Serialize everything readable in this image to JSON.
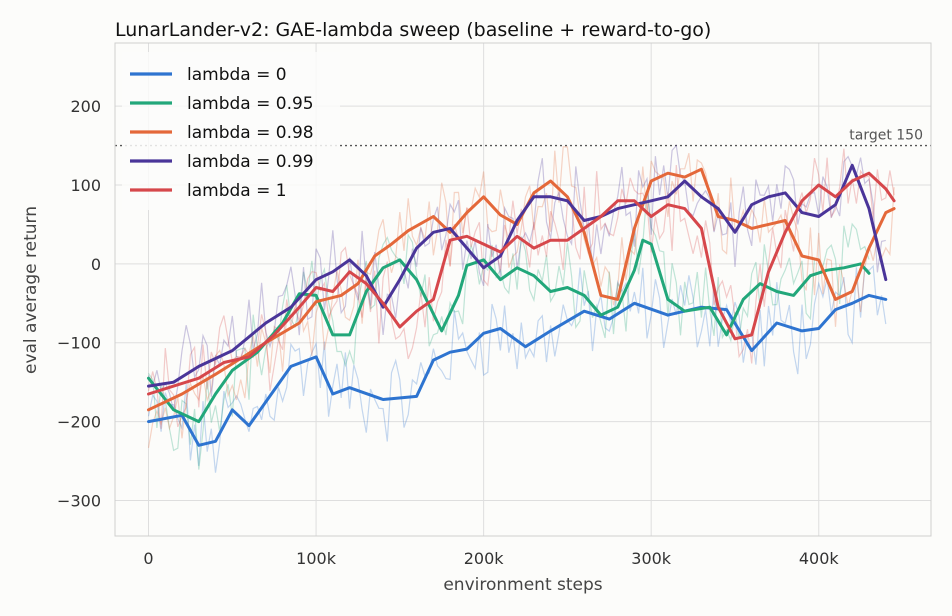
{
  "chart_data": {
    "type": "line",
    "title": "LunarLander-v2: GAE-lambda sweep (baseline + reward-to-go)",
    "xlabel": "environment steps",
    "ylabel": "eval average return",
    "xlim": [
      -20000,
      467000
    ],
    "ylim": [
      -345,
      280
    ],
    "x_ticks": [
      0,
      100000,
      200000,
      300000,
      400000
    ],
    "x_tick_labels": [
      "0",
      "100k",
      "200k",
      "300k",
      "400k"
    ],
    "y_ticks": [
      -300,
      -200,
      -100,
      0,
      100,
      200
    ],
    "y_tick_labels": [
      "−300",
      "−200",
      "−100",
      "0",
      "100",
      "200"
    ],
    "grid": true,
    "legend_position": "top-left",
    "reference_line": {
      "y": 150,
      "label": "target 150",
      "color": "#555555"
    },
    "series": [
      {
        "name": "lambda = 0",
        "color": "#2e74d0",
        "x": [
          0,
          20000,
          30000,
          40000,
          50000,
          60000,
          70000,
          85000,
          100000,
          110000,
          120000,
          140000,
          160000,
          170000,
          180000,
          190000,
          200000,
          210000,
          225000,
          240000,
          260000,
          275000,
          290000,
          310000,
          330000,
          345000,
          360000,
          375000,
          390000,
          400000,
          410000,
          420000,
          430000,
          440000
        ],
        "values": [
          -200,
          -192,
          -230,
          -225,
          -185,
          -205,
          -175,
          -130,
          -118,
          -165,
          -157,
          -172,
          -168,
          -122,
          -112,
          -108,
          -88,
          -82,
          -105,
          -85,
          -60,
          -70,
          -50,
          -65,
          -55,
          -58,
          -110,
          -75,
          -85,
          -82,
          -58,
          -50,
          -40,
          -45
        ]
      },
      {
        "name": "lambda = 0.95",
        "color": "#22a77a",
        "x": [
          0,
          15000,
          30000,
          40000,
          50000,
          65000,
          80000,
          90000,
          100000,
          110000,
          120000,
          130000,
          140000,
          150000,
          160000,
          175000,
          185000,
          190000,
          200000,
          210000,
          220000,
          230000,
          240000,
          250000,
          260000,
          270000,
          280000,
          290000,
          295000,
          300000,
          310000,
          320000,
          335000,
          345000,
          355000,
          365000,
          375000,
          385000,
          395000,
          405000,
          415000,
          425000,
          430000
        ],
        "values": [
          -145,
          -185,
          -200,
          -165,
          -135,
          -112,
          -75,
          -38,
          -40,
          -90,
          -90,
          -35,
          -5,
          5,
          -20,
          -85,
          -40,
          -2,
          5,
          -20,
          -5,
          -15,
          -35,
          -30,
          -40,
          -65,
          -55,
          -8,
          30,
          25,
          -45,
          -60,
          -55,
          -90,
          -45,
          -25,
          -35,
          -40,
          -15,
          -8,
          -5,
          0,
          -12
        ]
      },
      {
        "name": "lambda = 0.98",
        "color": "#e4683a",
        "x": [
          0,
          20000,
          40000,
          55000,
          70000,
          90000,
          100000,
          115000,
          125000,
          135000,
          145000,
          155000,
          170000,
          180000,
          190000,
          200000,
          210000,
          220000,
          230000,
          240000,
          250000,
          260000,
          270000,
          280000,
          290000,
          300000,
          310000,
          320000,
          330000,
          340000,
          350000,
          360000,
          370000,
          380000,
          390000,
          400000,
          410000,
          420000,
          430000,
          440000,
          445000
        ],
        "values": [
          -185,
          -165,
          -140,
          -120,
          -100,
          -75,
          -48,
          -40,
          -25,
          10,
          25,
          42,
          60,
          40,
          65,
          85,
          62,
          50,
          90,
          105,
          85,
          40,
          -40,
          -45,
          45,
          105,
          115,
          110,
          120,
          60,
          55,
          45,
          50,
          55,
          10,
          5,
          -45,
          -35,
          20,
          65,
          70
        ]
      },
      {
        "name": "lambda = 0.99",
        "color": "#4a3599",
        "x": [
          0,
          15000,
          30000,
          50000,
          70000,
          85000,
          100000,
          110000,
          120000,
          130000,
          140000,
          150000,
          160000,
          170000,
          180000,
          190000,
          200000,
          210000,
          220000,
          230000,
          240000,
          250000,
          260000,
          270000,
          280000,
          290000,
          300000,
          310000,
          320000,
          330000,
          340000,
          350000,
          360000,
          370000,
          380000,
          390000,
          400000,
          410000,
          420000,
          430000,
          440000
        ],
        "values": [
          -155,
          -150,
          -130,
          -110,
          -75,
          -55,
          -20,
          -10,
          5,
          -15,
          -55,
          -20,
          20,
          40,
          45,
          20,
          -5,
          10,
          55,
          85,
          85,
          80,
          55,
          60,
          70,
          75,
          80,
          85,
          105,
          85,
          70,
          40,
          75,
          85,
          90,
          65,
          60,
          75,
          125,
          70,
          -20
        ]
      },
      {
        "name": "lambda = 1",
        "color": "#d6474b",
        "x": [
          0,
          15000,
          30000,
          45000,
          60000,
          75000,
          90000,
          100000,
          110000,
          120000,
          130000,
          140000,
          150000,
          160000,
          170000,
          180000,
          190000,
          200000,
          210000,
          220000,
          230000,
          240000,
          250000,
          260000,
          270000,
          280000,
          290000,
          300000,
          310000,
          320000,
          330000,
          340000,
          350000,
          360000,
          370000,
          380000,
          390000,
          400000,
          410000,
          420000,
          430000,
          440000,
          445000
        ],
        "values": [
          -165,
          -155,
          -145,
          -125,
          -118,
          -90,
          -55,
          -30,
          -35,
          -10,
          -25,
          -50,
          -80,
          -60,
          -45,
          30,
          35,
          25,
          15,
          35,
          20,
          30,
          30,
          45,
          60,
          80,
          80,
          60,
          75,
          70,
          45,
          -55,
          -95,
          -90,
          -10,
          40,
          80,
          100,
          85,
          105,
          115,
          95,
          80
        ]
      }
    ],
    "raw_alpha": 0.28
  }
}
